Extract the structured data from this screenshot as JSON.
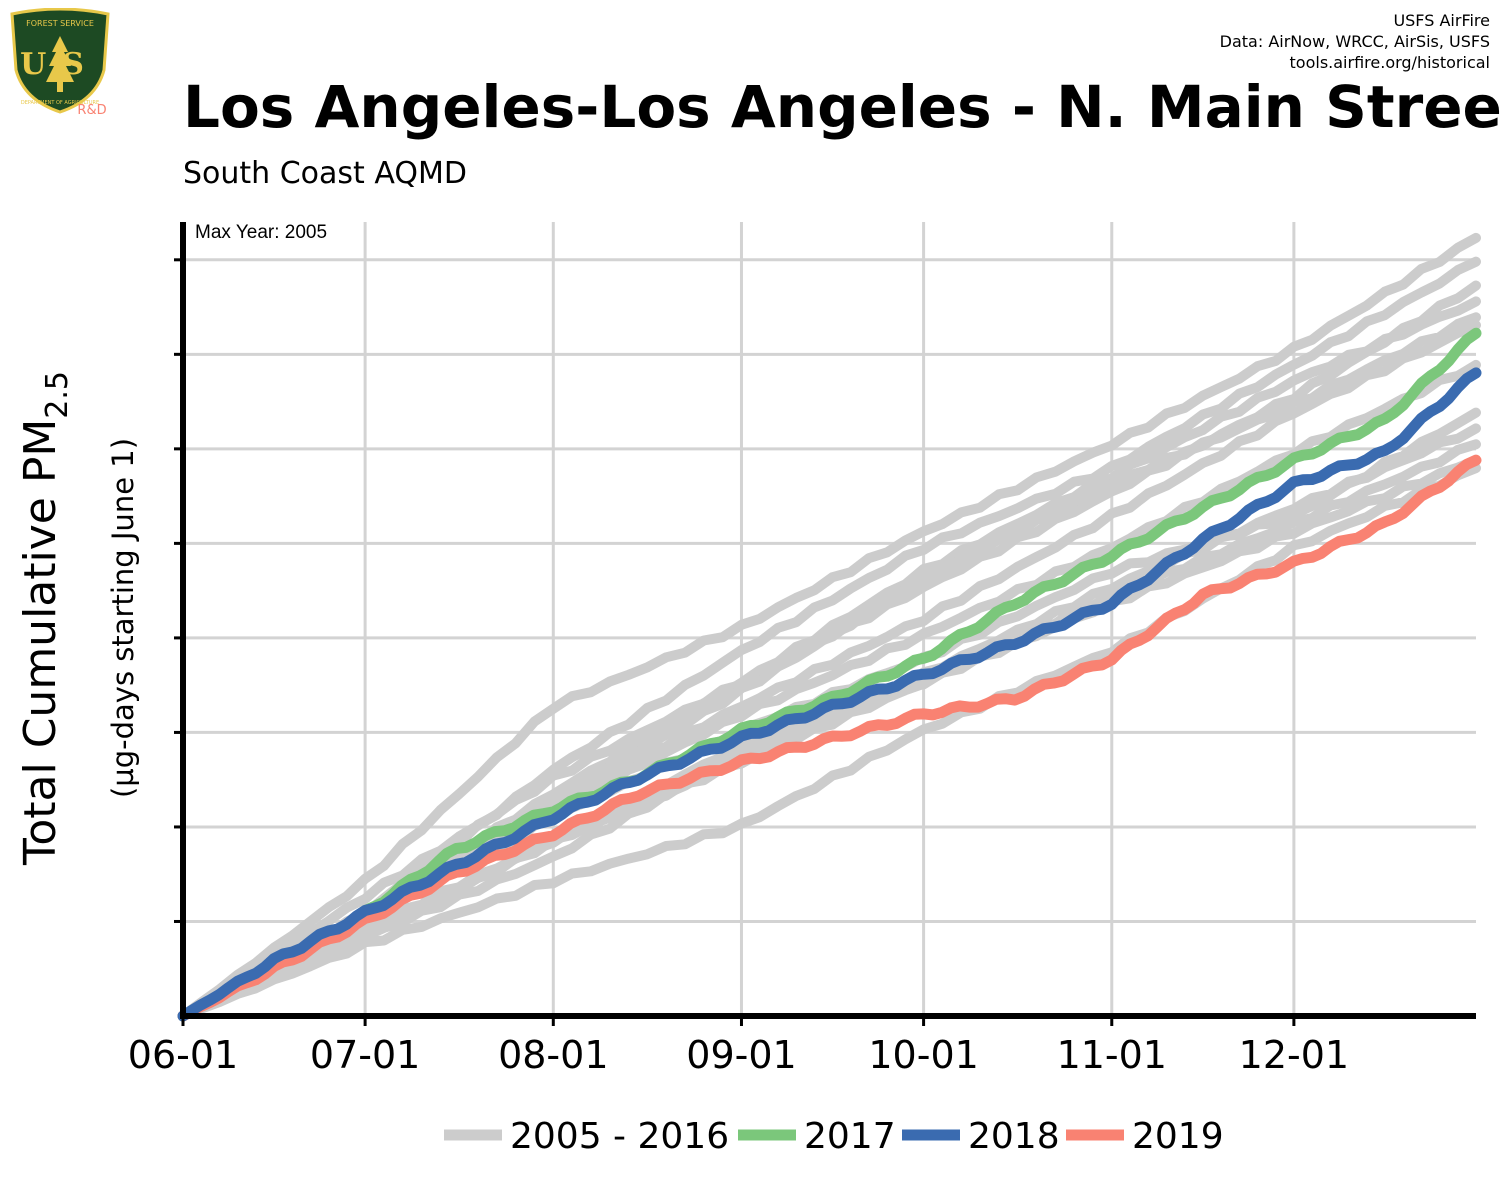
{
  "header": {
    "credits": [
      "USFS AirFire",
      "Data: AirNow, WRCC, AirSis, USFS",
      "tools.airfire.org/historical"
    ],
    "title": "Los Angeles-Los Angeles - N. Main Street",
    "subtitle": "South Coast AQMD"
  },
  "logo": {
    "top_text": "FOREST SERVICE",
    "letters": "US",
    "bottom_text": "DEPARTMENT OF AGRICULTURE",
    "rd_label": "R&D"
  },
  "colors": {
    "historical": "#cccccc",
    "y2017": "#7bc77b",
    "y2018": "#3a6bb0",
    "y2019": "#f98272",
    "axis": "#000000",
    "grid": "#d3d3d3",
    "logo_shield": "#1d4a23",
    "logo_gold": "#e8c84a",
    "rd_text": "#f98272"
  },
  "chart_data": {
    "type": "line",
    "title": "Los Angeles-Los Angeles - N. Main Street",
    "subtitle": "South Coast AQMD",
    "ylabel": "Total Cumulative PM2.5",
    "ylabel_main": "Total Cumulative PM",
    "ylabel_sub": "2.5",
    "ylabel2": "(µg-days starting June 1)",
    "annotation": "Max Year: 2005",
    "x_ticks": [
      "06-01",
      "07-01",
      "08-01",
      "09-01",
      "10-01",
      "11-01",
      "12-01"
    ],
    "x_tick_days": [
      0,
      30,
      61,
      92,
      122,
      153,
      183
    ],
    "xlim": [
      0,
      213
    ],
    "y_ticks_labeled": false,
    "y_tick_count": 8,
    "grid": true,
    "legend_position": "bottom",
    "legend": [
      "2005 - 2016",
      "2017",
      "2018",
      "2019"
    ],
    "units_note": "y values are relative (the axis prints no tick labels; the top of the plot is 1.0)",
    "series": [
      {
        "name": "2005 - 2016",
        "group": "historical",
        "x": [
          0,
          30,
          61,
          92,
          122,
          153,
          183,
          213
        ],
        "values": [
          0,
          0.17,
          0.39,
          0.49,
          0.61,
          0.72,
          0.84,
          0.98
        ]
      },
      {
        "name": "2005 - 2016",
        "group": "historical",
        "x": [
          0,
          30,
          61,
          92,
          122,
          153,
          183,
          213
        ],
        "values": [
          0,
          0.13,
          0.31,
          0.46,
          0.59,
          0.69,
          0.82,
          0.95
        ]
      },
      {
        "name": "2005 - 2016",
        "group": "historical",
        "x": [
          0,
          30,
          61,
          92,
          122,
          153,
          183,
          213
        ],
        "values": [
          0,
          0.15,
          0.3,
          0.42,
          0.54,
          0.66,
          0.78,
          0.92
        ]
      },
      {
        "name": "2005 - 2016",
        "group": "historical",
        "x": [
          0,
          30,
          61,
          92,
          122,
          153,
          183,
          213
        ],
        "values": [
          0,
          0.13,
          0.28,
          0.42,
          0.56,
          0.68,
          0.8,
          0.9
        ]
      },
      {
        "name": "2005 - 2016",
        "group": "historical",
        "x": [
          0,
          30,
          61,
          92,
          122,
          153,
          183,
          213
        ],
        "values": [
          0,
          0.13,
          0.27,
          0.41,
          0.55,
          0.67,
          0.77,
          0.88
        ]
      },
      {
        "name": "2005 - 2016",
        "group": "historical",
        "x": [
          0,
          30,
          61,
          92,
          122,
          153,
          183,
          213
        ],
        "values": [
          0,
          0.12,
          0.27,
          0.39,
          0.5,
          0.63,
          0.76,
          0.87
        ]
      },
      {
        "name": "2005 - 2016",
        "group": "historical",
        "x": [
          0,
          30,
          61,
          92,
          122,
          153,
          183,
          213
        ],
        "values": [
          0,
          0.12,
          0.26,
          0.38,
          0.48,
          0.59,
          0.71,
          0.82
        ]
      },
      {
        "name": "2005 - 2016",
        "group": "historical",
        "x": [
          0,
          30,
          61,
          92,
          122,
          153,
          183,
          213
        ],
        "values": [
          0,
          0.12,
          0.25,
          0.36,
          0.45,
          0.56,
          0.63,
          0.76
        ]
      },
      {
        "name": "2005 - 2016",
        "group": "historical",
        "x": [
          0,
          30,
          61,
          92,
          122,
          153,
          183,
          213
        ],
        "values": [
          0,
          0.11,
          0.22,
          0.34,
          0.42,
          0.53,
          0.62,
          0.72
        ]
      },
      {
        "name": "2005 - 2016",
        "group": "historical",
        "x": [
          0,
          30,
          61,
          92,
          122,
          153,
          183,
          213
        ],
        "values": [
          0,
          0.1,
          0.22,
          0.32,
          0.42,
          0.52,
          0.61,
          0.7
        ]
      },
      {
        "name": "2005 - 2016",
        "group": "historical",
        "x": [
          0,
          30,
          61,
          92,
          122,
          153,
          183,
          213
        ],
        "values": [
          0,
          0.1,
          0.2,
          0.33,
          0.43,
          0.54,
          0.64,
          0.74
        ]
      },
      {
        "name": "2005 - 2016",
        "group": "historical",
        "x": [
          0,
          30,
          61,
          92,
          122,
          153,
          183,
          213
        ],
        "values": [
          0,
          0.09,
          0.17,
          0.24,
          0.36,
          0.46,
          0.59,
          0.69
        ]
      },
      {
        "name": "2017",
        "group": "2017",
        "x": [
          0,
          15,
          30,
          45,
          61,
          75,
          92,
          107,
          122,
          137,
          153,
          168,
          183,
          198,
          213
        ],
        "values": [
          0,
          0.063,
          0.13,
          0.21,
          0.26,
          0.3,
          0.36,
          0.4,
          0.45,
          0.52,
          0.58,
          0.64,
          0.7,
          0.75,
          0.86
        ]
      },
      {
        "name": "2018",
        "group": "2018",
        "x": [
          0,
          15,
          30,
          45,
          61,
          75,
          92,
          107,
          122,
          137,
          153,
          168,
          183,
          198,
          213
        ],
        "values": [
          0,
          0.07,
          0.13,
          0.19,
          0.25,
          0.3,
          0.35,
          0.39,
          0.43,
          0.47,
          0.52,
          0.6,
          0.67,
          0.71,
          0.81
        ]
      },
      {
        "name": "2019",
        "group": "2019",
        "x": [
          0,
          15,
          30,
          45,
          61,
          75,
          92,
          107,
          122,
          137,
          153,
          168,
          183,
          198,
          213
        ],
        "values": [
          0,
          0.06,
          0.12,
          0.18,
          0.23,
          0.28,
          0.32,
          0.35,
          0.38,
          0.4,
          0.45,
          0.53,
          0.57,
          0.62,
          0.7
        ]
      }
    ]
  }
}
